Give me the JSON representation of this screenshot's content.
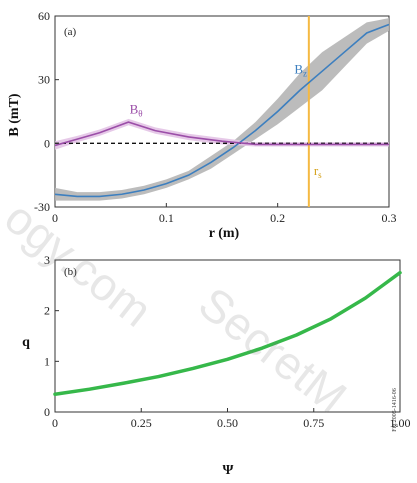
{
  "watermark": {
    "left": "ogy.com",
    "right": "SecretM"
  },
  "chart_data": [
    {
      "type": "line",
      "panel": "(a)",
      "xlabel": "r (m)",
      "ylabel": "B (mT)",
      "xlim": [
        0,
        0.3
      ],
      "ylim": [
        -30,
        60
      ],
      "xticks": [
        "0",
        "0.1",
        "0.2",
        "0.3"
      ],
      "xtick_values": [
        0,
        0.1,
        0.2,
        0.3
      ],
      "yticks": [
        "-30",
        "0",
        "30",
        "60"
      ],
      "ytick_values": [
        -30,
        0,
        30,
        60
      ],
      "series": [
        {
          "name": "Bz",
          "color": "#3d7fbf",
          "x": [
            0,
            0.02,
            0.04,
            0.06,
            0.08,
            0.1,
            0.12,
            0.14,
            0.16,
            0.18,
            0.2,
            0.22,
            0.24,
            0.26,
            0.28,
            0.3
          ],
          "y": [
            -24,
            -25,
            -25,
            -24,
            -22,
            -19,
            -15,
            -9,
            -2,
            6,
            15,
            25,
            34,
            43,
            52,
            56
          ],
          "band_halfwidth": [
            3,
            2,
            2,
            2,
            2,
            2,
            2,
            3,
            3,
            4,
            6,
            8,
            9,
            7,
            5,
            3
          ],
          "band_color": "#b5b5b5"
        },
        {
          "name": "Bθ",
          "color": "#9b4ea8",
          "x": [
            0,
            0.02,
            0.04,
            0.066,
            0.09,
            0.12,
            0.15,
            0.18,
            0.22,
            0.26,
            0.3
          ],
          "y": [
            -1,
            2,
            5,
            10,
            6,
            3,
            1,
            -0.5,
            -0.5,
            -0.5,
            -0.5
          ],
          "band_halfwidth": [
            2,
            1.5,
            1.5,
            1.5,
            1.5,
            1.5,
            1.5,
            1,
            1,
            1,
            1
          ],
          "band_color": "#e3c3e6"
        }
      ],
      "zero_line": {
        "y": 0,
        "style": "dashed",
        "color": "#111111"
      },
      "vline": {
        "x": 0.228,
        "label": "rs",
        "color": "#f5b942"
      },
      "annotations": [
        {
          "text": "B",
          "sub": "z",
          "series": "Bz",
          "x": 0.215,
          "y": 33
        },
        {
          "text": "B",
          "sub": "θ",
          "series": "Bθ",
          "x": 0.067,
          "y": 14
        }
      ]
    },
    {
      "type": "line",
      "panel": "(b)",
      "xlabel": "Ψ",
      "ylabel": "q",
      "xlim": [
        0,
        1
      ],
      "ylim": [
        0,
        3
      ],
      "xticks": [
        "0",
        "0.25",
        "0.50",
        "0.75",
        "1.00"
      ],
      "xtick_values": [
        0,
        0.25,
        0.5,
        0.75,
        1.0
      ],
      "yticks": [
        "0",
        "1",
        "2",
        "3"
      ],
      "ytick_values": [
        0,
        1,
        2,
        3
      ],
      "series": [
        {
          "name": "q",
          "color": "#36b84a",
          "x": [
            0,
            0.1,
            0.2,
            0.3,
            0.4,
            0.5,
            0.6,
            0.7,
            0.8,
            0.9,
            1.0
          ],
          "y": [
            0.35,
            0.45,
            0.57,
            0.7,
            0.86,
            1.04,
            1.26,
            1.52,
            1.84,
            2.25,
            2.75
          ]
        }
      ],
      "side_tag": "Fig.2005-1416-06"
    }
  ]
}
